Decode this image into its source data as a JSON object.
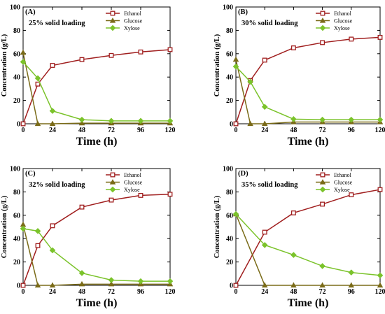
{
  "chart_data": [
    {
      "type": "line",
      "panel_label": "(A)",
      "title": "25% solid loading",
      "xlabel": "Time (h)",
      "ylabel": "Concentration (g/L)",
      "x": [
        0,
        12,
        24,
        48,
        72,
        96,
        120
      ],
      "xticks": [
        0,
        24,
        48,
        72,
        96,
        120
      ],
      "yticks": [
        0,
        20,
        40,
        60,
        80,
        100
      ],
      "xlim": [
        0,
        120
      ],
      "ylim": [
        0,
        100
      ],
      "legend_position": "top-right",
      "series": [
        {
          "name": "Ethanol",
          "color": "#a01e1e",
          "marker": "square",
          "values": [
            0,
            34,
            50,
            55,
            58.5,
            61.5,
            63.5
          ]
        },
        {
          "name": "Glucose",
          "color": "#7a6b18",
          "marker": "triangle",
          "values": [
            61,
            0,
            0,
            0.5,
            0.5,
            0.5,
            0.5
          ]
        },
        {
          "name": "Xylose",
          "color": "#7bc32b",
          "marker": "diamond",
          "values": [
            53,
            39,
            11,
            3.5,
            2.5,
            2.5,
            2.5
          ]
        }
      ]
    },
    {
      "type": "line",
      "panel_label": "(B)",
      "title": "30% solid loading",
      "xlabel": "Time (h)",
      "ylabel": "Concentration (g/L)",
      "x": [
        0,
        12,
        24,
        48,
        72,
        96,
        120
      ],
      "xticks": [
        0,
        24,
        48,
        72,
        96,
        120
      ],
      "yticks": [
        0,
        20,
        40,
        60,
        80,
        100
      ],
      "xlim": [
        0,
        120
      ],
      "ylim": [
        0,
        100
      ],
      "legend_position": "top-right",
      "series": [
        {
          "name": "Ethanol",
          "color": "#a01e1e",
          "marker": "square",
          "values": [
            0,
            37,
            54.5,
            65,
            69.5,
            72.5,
            74
          ]
        },
        {
          "name": "Glucose",
          "color": "#7a6b18",
          "marker": "triangle",
          "values": [
            55,
            0,
            0,
            1.5,
            1.5,
            1.5,
            1.5
          ]
        },
        {
          "name": "Xylose",
          "color": "#7bc32b",
          "marker": "diamond",
          "values": [
            49,
            36,
            14.5,
            4,
            3.5,
            3.5,
            3.5
          ]
        }
      ]
    },
    {
      "type": "line",
      "panel_label": "(C)",
      "title": "32% solid loading",
      "xlabel": "Time (h)",
      "ylabel": "Concentration (g/L)",
      "x": [
        0,
        12,
        24,
        48,
        72,
        96,
        120
      ],
      "xticks": [
        0,
        24,
        48,
        72,
        96,
        120
      ],
      "yticks": [
        0,
        20,
        40,
        60,
        80,
        100
      ],
      "xlim": [
        0,
        120
      ],
      "ylim": [
        0,
        100
      ],
      "legend_position": "top-right",
      "series": [
        {
          "name": "Ethanol",
          "color": "#a01e1e",
          "marker": "square",
          "values": [
            0,
            34,
            51,
            67,
            73,
            77,
            78
          ]
        },
        {
          "name": "Glucose",
          "color": "#7a6b18",
          "marker": "triangle",
          "values": [
            52,
            0,
            0,
            1,
            1,
            1,
            1
          ]
        },
        {
          "name": "Xylose",
          "color": "#7bc32b",
          "marker": "diamond",
          "values": [
            48.5,
            46.5,
            30,
            10.5,
            4.5,
            3.5,
            3.5
          ]
        }
      ]
    },
    {
      "type": "line",
      "panel_label": "(D)",
      "title": "35% solid loading",
      "xlabel": "Time (h)",
      "ylabel": "Concentration (g/L)",
      "x": [
        0,
        24,
        48,
        72,
        96,
        120
      ],
      "xticks": [
        0,
        24,
        48,
        72,
        96,
        120
      ],
      "yticks": [
        0,
        20,
        40,
        60,
        80,
        100
      ],
      "xlim": [
        0,
        120
      ],
      "ylim": [
        0,
        100
      ],
      "legend_position": "top-right",
      "series": [
        {
          "name": "Ethanol",
          "color": "#a01e1e",
          "marker": "square",
          "values": [
            0,
            45.5,
            62,
            69.5,
            77.5,
            82
          ]
        },
        {
          "name": "Glucose",
          "color": "#7a6b18",
          "marker": "triangle",
          "values": [
            61,
            0,
            0,
            0,
            0,
            0
          ]
        },
        {
          "name": "Xylose",
          "color": "#7bc32b",
          "marker": "diamond",
          "values": [
            61,
            34.5,
            26,
            16.5,
            11,
            8.5
          ]
        }
      ]
    }
  ]
}
